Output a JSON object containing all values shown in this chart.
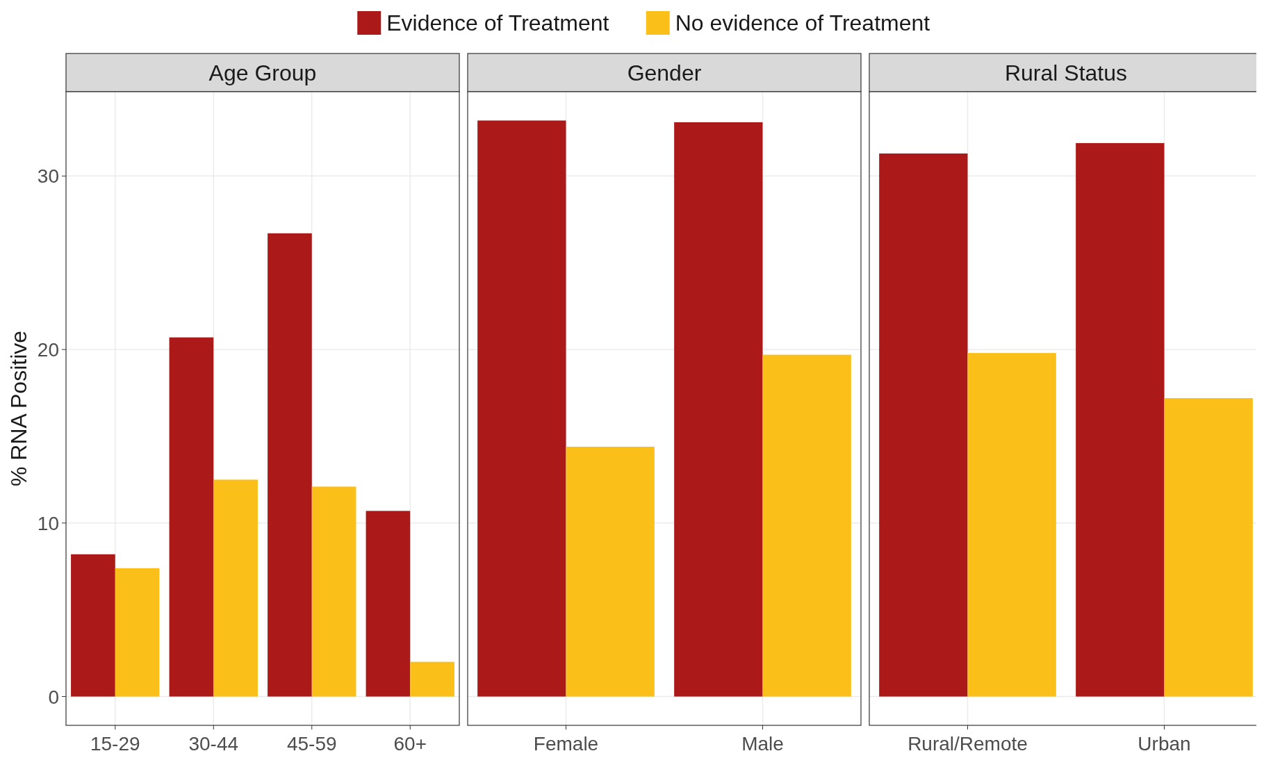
{
  "chart_data": [
    {
      "type": "bar",
      "title": "Age Group",
      "ylabel": "% RNA Positive",
      "categories": [
        "15-29",
        "30-44",
        "45-59",
        "60+"
      ],
      "series": [
        {
          "name": "Evidence of Treatment",
          "color": "#ab1a19",
          "values": [
            8.2,
            20.7,
            26.7,
            10.7
          ]
        },
        {
          "name": "No evidence of Treatment",
          "color": "#fbbf1a",
          "values": [
            7.4,
            12.5,
            12.1,
            2.0
          ]
        }
      ],
      "ylim": [
        -1.66,
        34.86
      ],
      "yticks": [
        0,
        10,
        20,
        30
      ],
      "grid": true,
      "legend": "top"
    },
    {
      "type": "bar",
      "title": "Gender",
      "categories": [
        "Female",
        "Male"
      ],
      "series": [
        {
          "color": "#ab1a19",
          "values": [
            33.2,
            33.1
          ]
        },
        {
          "color": "#fbbf1a",
          "values": [
            14.4,
            19.7
          ]
        }
      ],
      "ylim": [
        -1.66,
        34.86
      ],
      "yticks": [
        0,
        10,
        20,
        30
      ],
      "grid": true,
      "tick_labels": "x"
    },
    {
      "type": "bar",
      "title": "Rural Status",
      "categories": [
        "Rural/Remote",
        "Urban"
      ],
      "series": [
        {
          "color": "#ab1a19",
          "values": [
            31.3,
            31.9
          ]
        },
        {
          "color": "#fbbf1a",
          "values": [
            19.8,
            17.2
          ]
        }
      ],
      "ylim": [
        -1.66,
        34.86
      ],
      "yticks": [
        0,
        10,
        20,
        30
      ],
      "grid": true,
      "tick_labels": "x"
    }
  ]
}
